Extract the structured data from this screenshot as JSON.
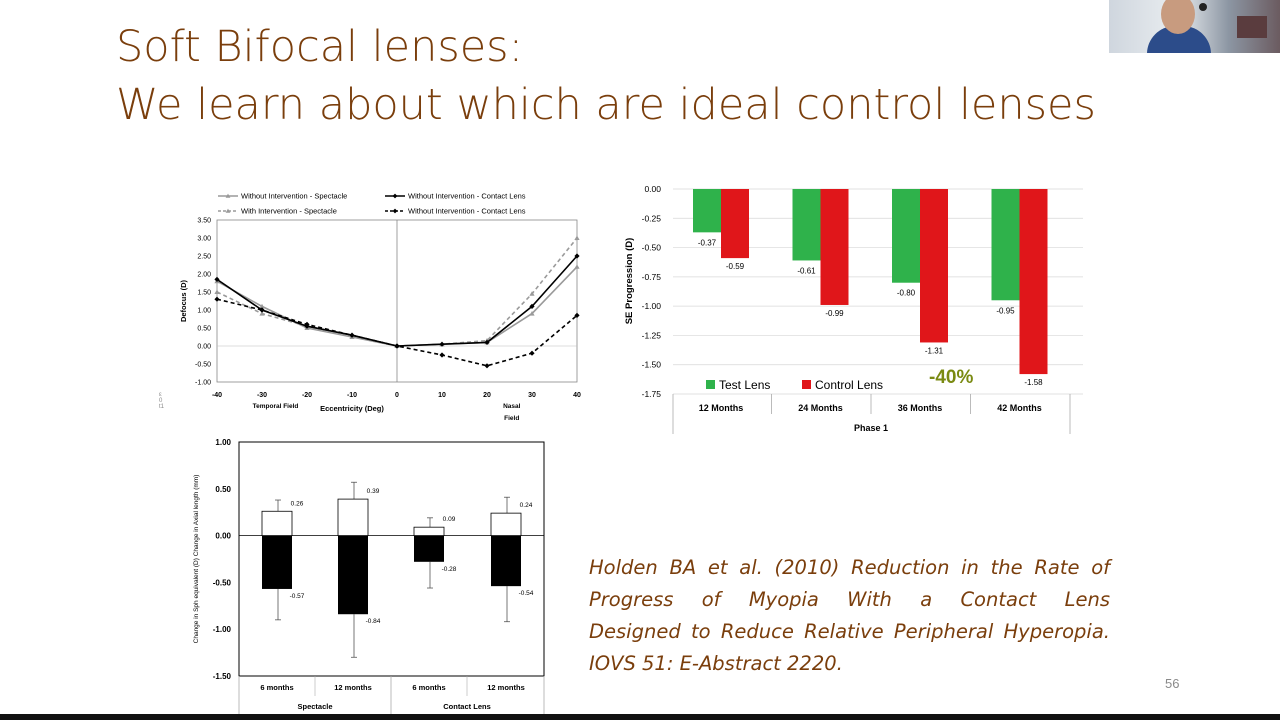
{
  "slide": {
    "title_line1": "Soft Bifocal lenses:",
    "title_line2": "We learn about which are ideal control lenses",
    "citation_lines": [
      "Holden BA et al. (2010) Reduction in the Rate of",
      "Progress of Myopia With a Contact Lens",
      "Designed to Reduce Relative Peripheral Hyperopia.",
      "IOVS 51: E-Abstract 2220."
    ],
    "page_number": "56",
    "side_mark": "ε\n0\nt1"
  },
  "chart_data": [
    {
      "type": "line",
      "ylabel": "Defocus (D)",
      "xlabel": "Eccentricity (Deg)",
      "x_tick_labels": [
        "-40",
        "-30",
        "-20",
        "-10",
        "0",
        "10",
        "20",
        "30",
        "40"
      ],
      "y_tick_labels": [
        "3.50",
        "3.00",
        "2.50",
        "2.00",
        "1.50",
        "1.00",
        "0.50",
        "0.00",
        "-0.50",
        "-1.00"
      ],
      "field_labels": {
        "temporal": "Temporal Field",
        "nasal_line1": "Nasal",
        "nasal_line2": "Field"
      },
      "x": [
        -40,
        -30,
        -20,
        -10,
        0,
        10,
        20,
        30,
        40
      ],
      "xlim": [
        -40,
        40
      ],
      "ylim": [
        -1.0,
        3.5
      ],
      "series": [
        {
          "name": "Without Intervention - Spectacle",
          "color": "#9a9a9a",
          "dash": false,
          "values": [
            1.8,
            1.1,
            0.5,
            0.25,
            0.0,
            0.05,
            0.1,
            0.9,
            2.2
          ]
        },
        {
          "name": "With Intervention - Spectacle",
          "color": "#9a9a9a",
          "dash": true,
          "values": [
            1.5,
            0.9,
            0.55,
            0.3,
            0.0,
            0.05,
            0.15,
            1.45,
            3.0
          ]
        },
        {
          "name": "Without Intervention - Contact Lens",
          "color": "#000000",
          "dash": false,
          "values": [
            1.85,
            1.0,
            0.55,
            0.3,
            0.0,
            0.05,
            0.1,
            1.1,
            2.5
          ]
        },
        {
          "name": "Without Intervention - Contact Lens",
          "color": "#000000",
          "dash": true,
          "values": [
            1.3,
            1.0,
            0.6,
            0.3,
            0.0,
            -0.25,
            -0.55,
            -0.2,
            0.85
          ]
        }
      ]
    },
    {
      "type": "bar",
      "ylabel": "SE Progression (D)",
      "xlabel": "Phase 1",
      "categories": [
        "12 Months",
        "24 Months",
        "36 Months",
        "42 Months"
      ],
      "y_tick_labels": [
        "0.00",
        "-0.25",
        "-0.50",
        "-0.75",
        "-1.00",
        "-1.25",
        "-1.50",
        "-1.75"
      ],
      "ylim": [
        -1.75,
        0
      ],
      "series": [
        {
          "name": "Test Lens",
          "color": "#2fb24b",
          "values": [
            -0.37,
            -0.61,
            -0.8,
            -0.95
          ],
          "labels": [
            "-0.37",
            "-0.61",
            "-0.80",
            "-0.95"
          ]
        },
        {
          "name": "Control Lens",
          "color": "#e0161a",
          "values": [
            -0.59,
            -0.99,
            -1.31,
            -1.58
          ],
          "labels": [
            "-0.59",
            "-0.99",
            "-1.31",
            "-1.58"
          ]
        }
      ],
      "annotation": "-40%",
      "annotation_color": "#7a8a12"
    },
    {
      "type": "bar",
      "ylabel": "Change in Sph equivalent (D)     Change in Axial length (mm)",
      "categories": [
        "6 months",
        "12 months",
        "6 months",
        "12 months"
      ],
      "groups": [
        "Spectacle",
        "Contact Lens"
      ],
      "y_tick_labels": [
        "1.00",
        "0.50",
        "0.00",
        "-0.50",
        "-1.00",
        "-1.50"
      ],
      "ylim": [
        -1.5,
        1.0
      ],
      "series": [
        {
          "name": "Axial length",
          "color": "#ffffff",
          "values": [
            0.26,
            0.39,
            0.09,
            0.24
          ],
          "labels": [
            "0.26",
            "0.39",
            "0.09",
            "0.24"
          ],
          "errors": [
            0.12,
            0.18,
            0.1,
            0.17
          ]
        },
        {
          "name": "Sph equivalent",
          "color": "#000000",
          "values": [
            -0.57,
            -0.84,
            -0.28,
            -0.54
          ],
          "labels": [
            "-0.57",
            "-0.84",
            "-0.28",
            "-0.54"
          ],
          "errors": [
            0.33,
            0.46,
            0.28,
            0.38
          ]
        }
      ]
    }
  ]
}
